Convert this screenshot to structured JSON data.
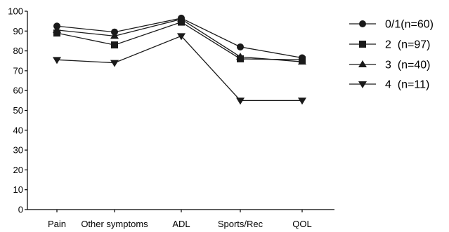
{
  "chart_data": {
    "type": "line",
    "title": "",
    "xlabel": "",
    "ylabel": "",
    "categories": [
      "Pain",
      "Other symptoms",
      "ADL",
      "Sports/Rec",
      "QOL"
    ],
    "ylim": [
      0,
      100
    ],
    "yticks": [
      0,
      10,
      20,
      30,
      40,
      50,
      60,
      70,
      80,
      90,
      100
    ],
    "grid": false,
    "legend_position": "right",
    "series": [
      {
        "name": "0/1(n=60)",
        "marker": "circle",
        "values": [
          92.5,
          89.5,
          96.5,
          82,
          76.5
        ]
      },
      {
        "name": "2  (n=97)",
        "marker": "square",
        "values": [
          89,
          83,
          94.5,
          76,
          75.5
        ]
      },
      {
        "name": "3  (n=40)",
        "marker": "triangle-up",
        "values": [
          90.5,
          87.5,
          96,
          77,
          74.5
        ]
      },
      {
        "name": "4  (n=11)",
        "marker": "triangle-down",
        "values": [
          75.5,
          74,
          87.5,
          55,
          55
        ]
      }
    ],
    "colors": {
      "line": "#1a1a1a",
      "axis": "#000000",
      "text": "#000000"
    }
  }
}
